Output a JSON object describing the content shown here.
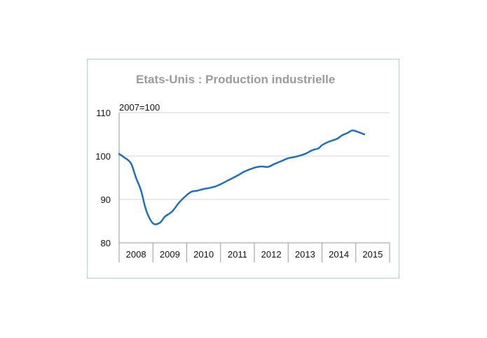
{
  "chart_data": {
    "type": "line",
    "title": "Etats-Unis : Production industrielle",
    "unit_label": "2007=100",
    "xlabel": "",
    "ylabel": "",
    "ylim": [
      80,
      110
    ],
    "y_ticks": [
      "80",
      "90",
      "100",
      "110"
    ],
    "x_categories": [
      "2008",
      "2009",
      "2010",
      "2011",
      "2012",
      "2013",
      "2014",
      "2015"
    ],
    "grid": true,
    "line_color": "#1f6fbf",
    "series": [
      {
        "x": [
          2008.0,
          2008.15,
          2008.35,
          2008.5,
          2008.65,
          2008.8,
          2009.0,
          2009.2,
          2009.35,
          2009.5,
          2009.6,
          2009.8,
          2010.0,
          2010.15,
          2010.3,
          2010.5,
          2010.7,
          2010.85,
          2011.0,
          2011.2,
          2011.5,
          2011.7,
          2012.0,
          2012.2,
          2012.4,
          2012.6,
          2012.85,
          2013.0,
          2013.2,
          2013.5,
          2013.7,
          2013.9,
          2014.0,
          2014.2,
          2014.45,
          2014.6,
          2014.75,
          2014.9,
          2015.05,
          2015.25
        ],
        "y": [
          100.5,
          99.7,
          98.3,
          95.0,
          92.0,
          87.5,
          84.5,
          84.6,
          86.0,
          86.8,
          87.5,
          89.5,
          91.0,
          91.8,
          92.0,
          92.4,
          92.7,
          93.0,
          93.5,
          94.3,
          95.5,
          96.4,
          97.3,
          97.6,
          97.5,
          98.2,
          99.0,
          99.5,
          99.8,
          100.5,
          101.3,
          101.8,
          102.5,
          103.3,
          104.0,
          104.8,
          105.3,
          105.9,
          105.6,
          105.0
        ]
      }
    ]
  }
}
